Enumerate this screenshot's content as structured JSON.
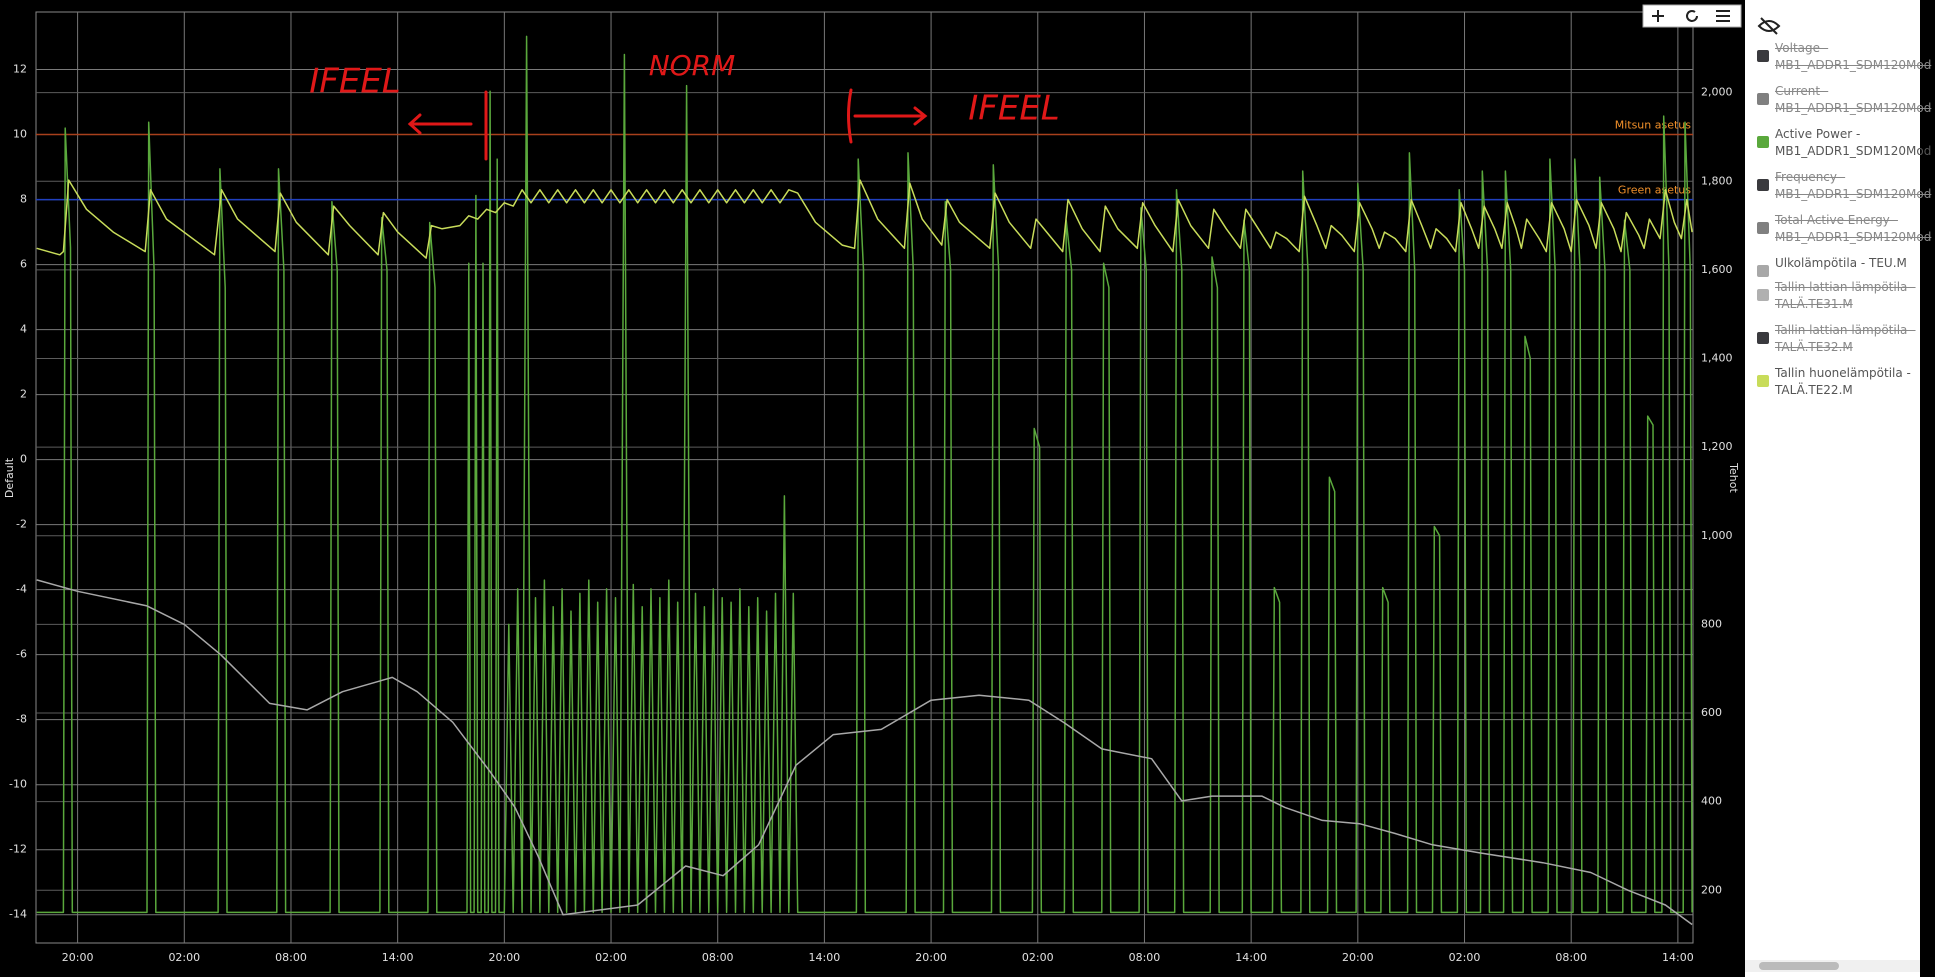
{
  "chart_data": {
    "type": "line",
    "y_label": "Default",
    "y2_label": "Tehot",
    "xlim": [
      -2.34,
      90.85
    ],
    "xticks": [
      {
        "value": 0,
        "label": "20:00"
      },
      {
        "value": 6,
        "label": "02:00"
      },
      {
        "value": 12,
        "label": "08:00"
      },
      {
        "value": 18,
        "label": "14:00"
      },
      {
        "value": 24,
        "label": "20:00"
      },
      {
        "value": 30,
        "label": "02:00"
      },
      {
        "value": 36,
        "label": "08:00"
      },
      {
        "value": 42,
        "label": "14:00"
      },
      {
        "value": 48,
        "label": "20:00"
      },
      {
        "value": 54,
        "label": "02:00"
      },
      {
        "value": 60,
        "label": "08:00"
      },
      {
        "value": 66,
        "label": "14:00"
      },
      {
        "value": 72,
        "label": "20:00"
      },
      {
        "value": 78,
        "label": "02:00"
      },
      {
        "value": 84,
        "label": "08:00"
      },
      {
        "value": 90,
        "label": "14:00"
      }
    ],
    "ylim": [
      -14.87,
      13.77
    ],
    "yticks": [
      -14,
      -12,
      -10,
      -8,
      -6,
      -4,
      -2,
      0,
      2,
      4,
      6,
      8,
      10,
      12
    ],
    "y2lim": [
      81,
      2182
    ],
    "y2ticks": [
      200,
      400,
      600,
      800,
      {
        "value": 1000,
        "label": "1,000"
      },
      {
        "value": 1200,
        "label": "1,200"
      },
      {
        "value": 1400,
        "label": "1,400"
      },
      {
        "value": 1600,
        "label": "1,600"
      },
      {
        "value": 1800,
        "label": "1,800"
      },
      {
        "value": 2000,
        "label": "2,000"
      }
    ],
    "grid": true,
    "legend_position": "right",
    "plot_lines": [
      {
        "label": "Mitsun asetus",
        "value": 10,
        "color": "#a8401c",
        "label_color": "#f0902a"
      },
      {
        "label": "Green asetus",
        "value": 8,
        "color": "#2040c0",
        "label_color": "#f0902a"
      }
    ],
    "annotations": [
      {
        "text": "IFEEL"
      },
      {
        "text": "NORM"
      },
      {
        "text": "IFEEL"
      }
    ],
    "series": [
      {
        "name": "Voltage - MB1_ADDR1_SDM120Mod",
        "color": "#3a3a3e",
        "hidden": true
      },
      {
        "name": "Current - MB1_ADDR1_SDM120Mod",
        "color": "#808080",
        "hidden": true
      },
      {
        "name": "Active Power - MB1_ADDR1_SDM120Mod",
        "color": "#5aa83c",
        "hidden": false,
        "axis": "y2",
        "x": [
          -2.3,
          -0.8,
          -0.7,
          -0.4,
          -0.3,
          3.9,
          4.0,
          4.3,
          4.4,
          7.9,
          8.0,
          8.3,
          8.4,
          11.2,
          11.3,
          11.6,
          11.7,
          14.2,
          14.3,
          14.6,
          14.7,
          17.0,
          17.1,
          17.4,
          17.5,
          19.7,
          19.8,
          20.1,
          20.2,
          21.9,
          22.0,
          22.1,
          22.3,
          22.4,
          22.5,
          22.7,
          22.8,
          22.9,
          23.1,
          23.2,
          23.3,
          23.5,
          23.6,
          23.7,
          24.0,
          24.25,
          24.5,
          24.75,
          25.0,
          25.25,
          25.5,
          25.75,
          26.0,
          26.25,
          26.5,
          26.75,
          27.0,
          27.25,
          27.5,
          27.75,
          28.0,
          28.25,
          28.5,
          28.75,
          29.0,
          29.25,
          29.5,
          29.75,
          30.0,
          30.25,
          30.5,
          30.75,
          31.0,
          31.25,
          31.5,
          31.75,
          32.0,
          32.25,
          32.5,
          32.75,
          33.0,
          33.25,
          33.5,
          33.75,
          34.0,
          34.25,
          34.5,
          34.75,
          35.0,
          35.25,
          35.5,
          35.75,
          36.0,
          36.25,
          36.5,
          36.75,
          37.0,
          37.25,
          37.5,
          37.75,
          38.0,
          38.25,
          38.5,
          38.75,
          39.0,
          39.25,
          39.5,
          39.75,
          40.0,
          40.25,
          40.5,
          43.8,
          43.9,
          44.2,
          44.3,
          46.6,
          46.7,
          47.0,
          47.1,
          48.7,
          48.8,
          49.1,
          49.2,
          51.4,
          51.5,
          51.8,
          51.9,
          53.7,
          53.8,
          54.1,
          54.2,
          55.5,
          55.6,
          55.9,
          56.0,
          57.6,
          57.7,
          58.0,
          58.1,
          59.7,
          59.8,
          60.1,
          60.2,
          61.7,
          61.8,
          62.1,
          62.2,
          63.7,
          63.8,
          64.1,
          64.2,
          65.5,
          65.6,
          65.9,
          66.0,
          67.2,
          67.3,
          67.6,
          67.7,
          68.8,
          68.9,
          69.2,
          69.3,
          70.3,
          70.4,
          70.7,
          70.8,
          71.9,
          72.0,
          72.3,
          72.4,
          73.3,
          73.4,
          73.7,
          73.8,
          74.8,
          74.9,
          75.2,
          75.3,
          76.2,
          76.3,
          76.6,
          76.7,
          77.6,
          77.7,
          78.0,
          78.1,
          78.9,
          79.0,
          79.3,
          79.4,
          80.2,
          80.3,
          80.6,
          80.7,
          81.3,
          81.4,
          81.7,
          81.8,
          82.7,
          82.8,
          83.1,
          83.2,
          84.1,
          84.2,
          84.5,
          84.6,
          85.5,
          85.6,
          85.9,
          86.0,
          86.9,
          87.0,
          87.3,
          87.4,
          88.2,
          88.3,
          88.6,
          88.7,
          89.1,
          89.2,
          89.5,
          89.6,
          90.3,
          90.4,
          90.7,
          90.8
        ],
        "values": [
          150,
          150,
          1920,
          1650,
          150,
          150,
          1933,
          1600,
          150,
          150,
          1828,
          1560,
          150,
          150,
          1828,
          1600,
          150,
          150,
          1754,
          1600,
          150,
          150,
          1718,
          1600,
          150,
          150,
          1707,
          1560,
          150,
          150,
          1615,
          150,
          150,
          1768,
          150,
          150,
          1615,
          150,
          150,
          2003,
          150,
          150,
          1850,
          150,
          150,
          800,
          150,
          880,
          150,
          2127,
          150,
          860,
          150,
          900,
          150,
          840,
          150,
          880,
          150,
          830,
          150,
          870,
          150,
          900,
          150,
          850,
          150,
          880,
          150,
          860,
          150,
          2086,
          150,
          890,
          150,
          840,
          150,
          880,
          150,
          860,
          150,
          900,
          150,
          850,
          150,
          2016,
          150,
          870,
          150,
          840,
          150,
          880,
          150,
          860,
          150,
          850,
          150,
          880,
          150,
          840,
          150,
          860,
          150,
          830,
          150,
          870,
          150,
          1090,
          150,
          870,
          150,
          150,
          1850,
          1600,
          150,
          150,
          1864,
          1600,
          150,
          150,
          1754,
          1600,
          150,
          150,
          1837,
          1600,
          150,
          150,
          1242,
          1200,
          150,
          150,
          1712,
          1600,
          150,
          150,
          1615,
          1560,
          150,
          150,
          1740,
          1600,
          150,
          150,
          1781,
          1600,
          150,
          150,
          1629,
          1560,
          150,
          150,
          1712,
          1600,
          150,
          150,
          883,
          850,
          150,
          150,
          1823,
          1600,
          150,
          150,
          1132,
          1100,
          150,
          150,
          1795,
          1600,
          150,
          150,
          883,
          850,
          150,
          150,
          1864,
          1600,
          150,
          150,
          1021,
          1000,
          150,
          150,
          1781,
          1600,
          150,
          150,
          1823,
          1600,
          150,
          150,
          1823,
          1600,
          150,
          150,
          1450,
          1400,
          150,
          150,
          1850,
          1600,
          150,
          150,
          1850,
          1600,
          150,
          150,
          1809,
          1600,
          150,
          150,
          1712,
          1600,
          150,
          150,
          1270,
          1250,
          150,
          150,
          1947,
          1600,
          150,
          150,
          1933,
          1600,
          150
        ]
      },
      {
        "name": "Frequency - MB1_ADDR1_SDM120Mod",
        "color": "#3a3a3e",
        "hidden": true
      },
      {
        "name": "Total Active Energy - MB1_ADDR1_SDM120Mod",
        "color": "#808080",
        "hidden": true
      },
      {
        "name": "Ulkolämpötila - TEU.M",
        "color": "#a8a8a8",
        "hidden": false,
        "axis": "y",
        "x": [
          -2.3,
          0,
          3.9,
          6,
          8.05,
          10.8,
          12.9,
          14.9,
          17.7,
          19.1,
          21.1,
          23.2,
          24.6,
          25.9,
          27.3,
          28.7,
          31.5,
          34.2,
          36.3,
          38.3,
          40.4,
          42.5,
          45.2,
          48.0,
          50.7,
          53.5,
          55.5,
          57.6,
          60.4,
          62.1,
          63.8,
          66.6,
          67.9,
          70.0,
          72.1,
          74.1,
          76.2,
          78.9,
          82.4,
          85.1,
          87.2,
          89.3,
          90.8
        ],
        "values": [
          -3.7,
          -4.05,
          -4.5,
          -5.07,
          -6.0,
          -7.5,
          -7.7,
          -7.14,
          -6.7,
          -7.14,
          -8.08,
          -9.6,
          -10.7,
          -12.2,
          -14.0,
          -13.9,
          -13.7,
          -12.5,
          -12.8,
          -11.85,
          -9.4,
          -8.46,
          -8.3,
          -7.4,
          -7.25,
          -7.4,
          -8.1,
          -8.9,
          -9.2,
          -10.5,
          -10.35,
          -10.35,
          -10.7,
          -11.1,
          -11.2,
          -11.5,
          -11.85,
          -12.1,
          -12.4,
          -12.7,
          -13.25,
          -13.7,
          -14.3
        ]
      },
      {
        "name": "Tallin lattian lämpötila - TALÄ.TE31.M",
        "color": "#b0b0b0",
        "hidden": true
      },
      {
        "name": "Tallin lattian lämpötila - TALÄ.TE32.M",
        "color": "#3a3a3e",
        "hidden": true
      },
      {
        "name": "Tallin huonelämpötila - TALÄ.TE22.M",
        "color": "#c8dc5a",
        "hidden": false,
        "axis": "y",
        "x": [
          -2.3,
          -1.0,
          -0.8,
          -0.5,
          0.5,
          2.0,
          3.8,
          4.1,
          5.0,
          7.7,
          8.1,
          9.0,
          11.1,
          11.4,
          12.3,
          14.1,
          14.4,
          15.3,
          16.9,
          17.2,
          18.0,
          19.6,
          19.9,
          20.5,
          21.5,
          22.0,
          22.5,
          23.0,
          23.5,
          24.0,
          24.5,
          25.0,
          25.5,
          26.0,
          26.5,
          27.0,
          27.5,
          28.0,
          28.5,
          29.0,
          29.5,
          30.0,
          30.5,
          31.0,
          31.5,
          32.0,
          32.5,
          33.0,
          33.5,
          34.0,
          34.5,
          35.0,
          35.5,
          36.0,
          36.5,
          37.0,
          37.5,
          38.0,
          38.5,
          39.0,
          39.5,
          40.0,
          40.5,
          41.5,
          43.0,
          43.7,
          44.0,
          45.0,
          46.5,
          46.8,
          47.5,
          48.6,
          48.9,
          49.6,
          51.3,
          51.6,
          52.4,
          53.6,
          53.9,
          54.5,
          55.4,
          55.7,
          56.5,
          57.5,
          57.8,
          58.5,
          59.6,
          59.9,
          60.6,
          61.6,
          61.9,
          62.6,
          63.6,
          63.9,
          64.6,
          65.4,
          65.7,
          66.4,
          67.1,
          67.4,
          68.0,
          68.7,
          69.0,
          69.7,
          70.2,
          70.5,
          71.1,
          71.8,
          72.1,
          72.8,
          73.2,
          73.5,
          74.1,
          74.7,
          75.0,
          75.6,
          76.1,
          76.4,
          77.0,
          77.5,
          77.8,
          78.4,
          78.8,
          79.1,
          79.7,
          80.1,
          80.4,
          80.9,
          81.2,
          81.5,
          82.2,
          82.6,
          82.9,
          83.6,
          84.0,
          84.3,
          85.0,
          85.4,
          85.7,
          86.4,
          86.8,
          87.1,
          87.8,
          88.1,
          88.4,
          89.0,
          89.3,
          89.8,
          90.2,
          90.5,
          90.8
        ],
        "values": [
          6.5,
          6.3,
          6.4,
          8.6,
          7.7,
          7.0,
          6.4,
          8.3,
          7.4,
          6.3,
          8.3,
          7.4,
          6.4,
          8.2,
          7.3,
          6.3,
          7.8,
          7.2,
          6.3,
          7.6,
          7.0,
          6.2,
          7.2,
          7.1,
          7.2,
          7.5,
          7.4,
          7.7,
          7.6,
          7.9,
          7.8,
          8.3,
          7.9,
          8.3,
          7.9,
          8.3,
          7.9,
          8.3,
          7.9,
          8.3,
          7.9,
          8.3,
          7.9,
          8.3,
          7.9,
          8.3,
          7.9,
          8.3,
          7.9,
          8.3,
          7.9,
          8.3,
          7.9,
          8.3,
          7.9,
          8.3,
          7.9,
          8.3,
          7.9,
          8.3,
          7.9,
          8.3,
          8.2,
          7.3,
          6.6,
          6.5,
          8.6,
          7.4,
          6.5,
          8.5,
          7.4,
          6.6,
          8.0,
          7.3,
          6.5,
          8.2,
          7.3,
          6.5,
          7.4,
          7.0,
          6.4,
          8.0,
          7.1,
          6.4,
          7.8,
          7.1,
          6.5,
          7.9,
          7.2,
          6.4,
          8.0,
          7.2,
          6.5,
          7.7,
          7.1,
          6.5,
          7.7,
          7.1,
          6.5,
          7.0,
          6.8,
          6.4,
          8.1,
          7.2,
          6.5,
          7.2,
          6.9,
          6.4,
          7.9,
          7.1,
          6.5,
          7.0,
          6.8,
          6.4,
          8.0,
          7.2,
          6.5,
          7.1,
          6.8,
          6.4,
          7.9,
          7.1,
          6.5,
          7.8,
          7.1,
          6.5,
          7.9,
          7.1,
          6.5,
          7.4,
          6.8,
          6.4,
          7.9,
          7.1,
          6.4,
          8.0,
          7.2,
          6.5,
          7.9,
          7.1,
          6.4,
          7.6,
          6.9,
          6.5,
          7.4,
          6.8,
          8.3,
          7.3,
          6.8,
          8.0,
          7.0
        ]
      }
    ]
  }
}
